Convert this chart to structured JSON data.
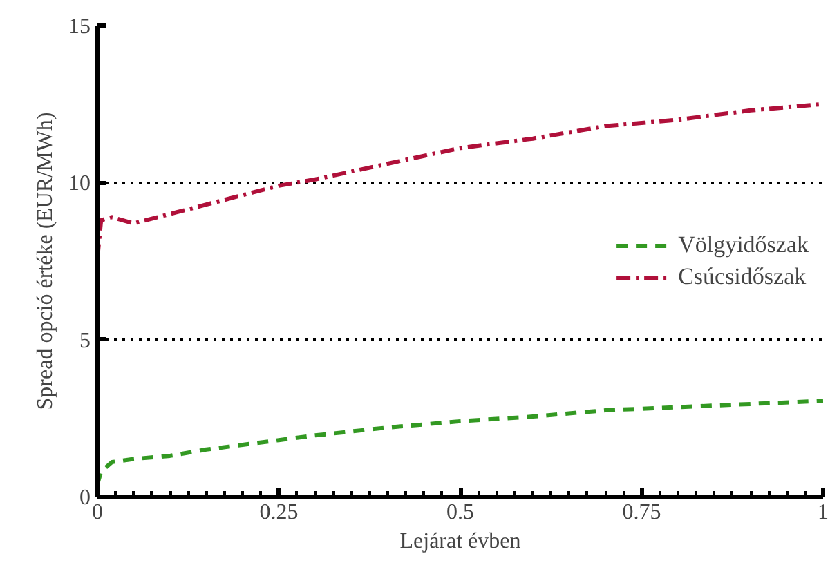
{
  "chart_data": {
    "type": "line",
    "xlabel": "Lejárat évben",
    "ylabel": "Spread opció értéke (EUR/MWh)",
    "xlim": [
      0,
      1
    ],
    "xticks": [
      0,
      0.25,
      0.5,
      0.75,
      1
    ],
    "ylim": [
      0,
      15
    ],
    "yticks": [
      0,
      5,
      10,
      15
    ],
    "grid": "y",
    "legend": "right",
    "marker": "none",
    "series": [
      {
        "name": "Völgyidőszak",
        "color": "#339922",
        "line_style": "dashed",
        "x": [
          0,
          0.005,
          0.02,
          0.05,
          0.1,
          0.15,
          0.2,
          0.25,
          0.3,
          0.4,
          0.5,
          0.6,
          0.7,
          0.8,
          0.9,
          1.0
        ],
        "values": [
          0.4,
          0.8,
          1.1,
          1.2,
          1.3,
          1.5,
          1.65,
          1.8,
          1.95,
          2.2,
          2.4,
          2.55,
          2.75,
          2.85,
          2.95,
          3.05
        ]
      },
      {
        "name": "Csúcsidőszak",
        "color": "#b0103a",
        "line_style": "dashdot",
        "x": [
          0,
          0.005,
          0.02,
          0.05,
          0.1,
          0.15,
          0.2,
          0.25,
          0.3,
          0.4,
          0.5,
          0.6,
          0.7,
          0.8,
          0.9,
          1.0
        ],
        "values": [
          7.6,
          8.8,
          8.9,
          8.7,
          9.0,
          9.3,
          9.6,
          9.9,
          10.1,
          10.6,
          11.1,
          11.4,
          11.8,
          12.0,
          12.3,
          12.5
        ]
      }
    ]
  }
}
